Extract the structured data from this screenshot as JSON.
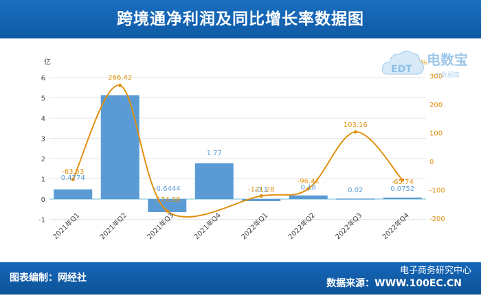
{
  "header": {
    "title": "跨境通净利润及同比增长率数据图"
  },
  "logo": {
    "brand": "电数宝",
    "sub": "大数据库",
    "mark": "EDT"
  },
  "footer": {
    "editor": "图表编制：网经社",
    "source": "数据来源：WWW.100EC.CN",
    "wechat": "电子商务研究中心"
  },
  "chart_data": {
    "type": "bar",
    "categories": [
      "2021年Q1",
      "2021年Q2",
      "2021年Q3",
      "2021年Q4",
      "2022年Q1",
      "2022年Q2",
      "2022年Q3",
      "2022年Q4"
    ],
    "series": [
      {
        "name": "",
        "kind": "bar",
        "axis": "left",
        "values": [
          0.4774,
          5.13,
          -0.6444,
          1.77,
          -0.1,
          0.18,
          0.02,
          0.0752
        ],
        "labels": [
          "0.4774",
          "5.13",
          "-0.6444",
          "1.77",
          "-0.1",
          "0.18",
          "0.02",
          "0.0752"
        ]
      },
      {
        "name": "",
        "kind": "line",
        "axis": "right",
        "values": [
          -63.53,
          266.42,
          -174.38,
          null,
          -121.28,
          -96.41,
          103.16,
          -65.74
        ],
        "labels": [
          "-63.53",
          "266.42",
          "-174.38",
          "",
          "-121.28",
          "-96.41",
          "103.16",
          "-65.74"
        ]
      }
    ],
    "ylabel": "亿",
    "ylabel_right": "%",
    "yticks": [
      -1,
      0,
      1,
      2,
      3,
      4,
      5,
      6
    ],
    "yticks_right": [
      -200,
      -100,
      0,
      100,
      200,
      300
    ],
    "ylim": [
      -1,
      6
    ],
    "ylim_right": [
      -200,
      300
    ],
    "grid": true,
    "colors": {
      "bar": "#5b9bd5",
      "line": "#e0900f",
      "bar_label": "#5b9bd5",
      "line_label": "#e0900f"
    }
  }
}
